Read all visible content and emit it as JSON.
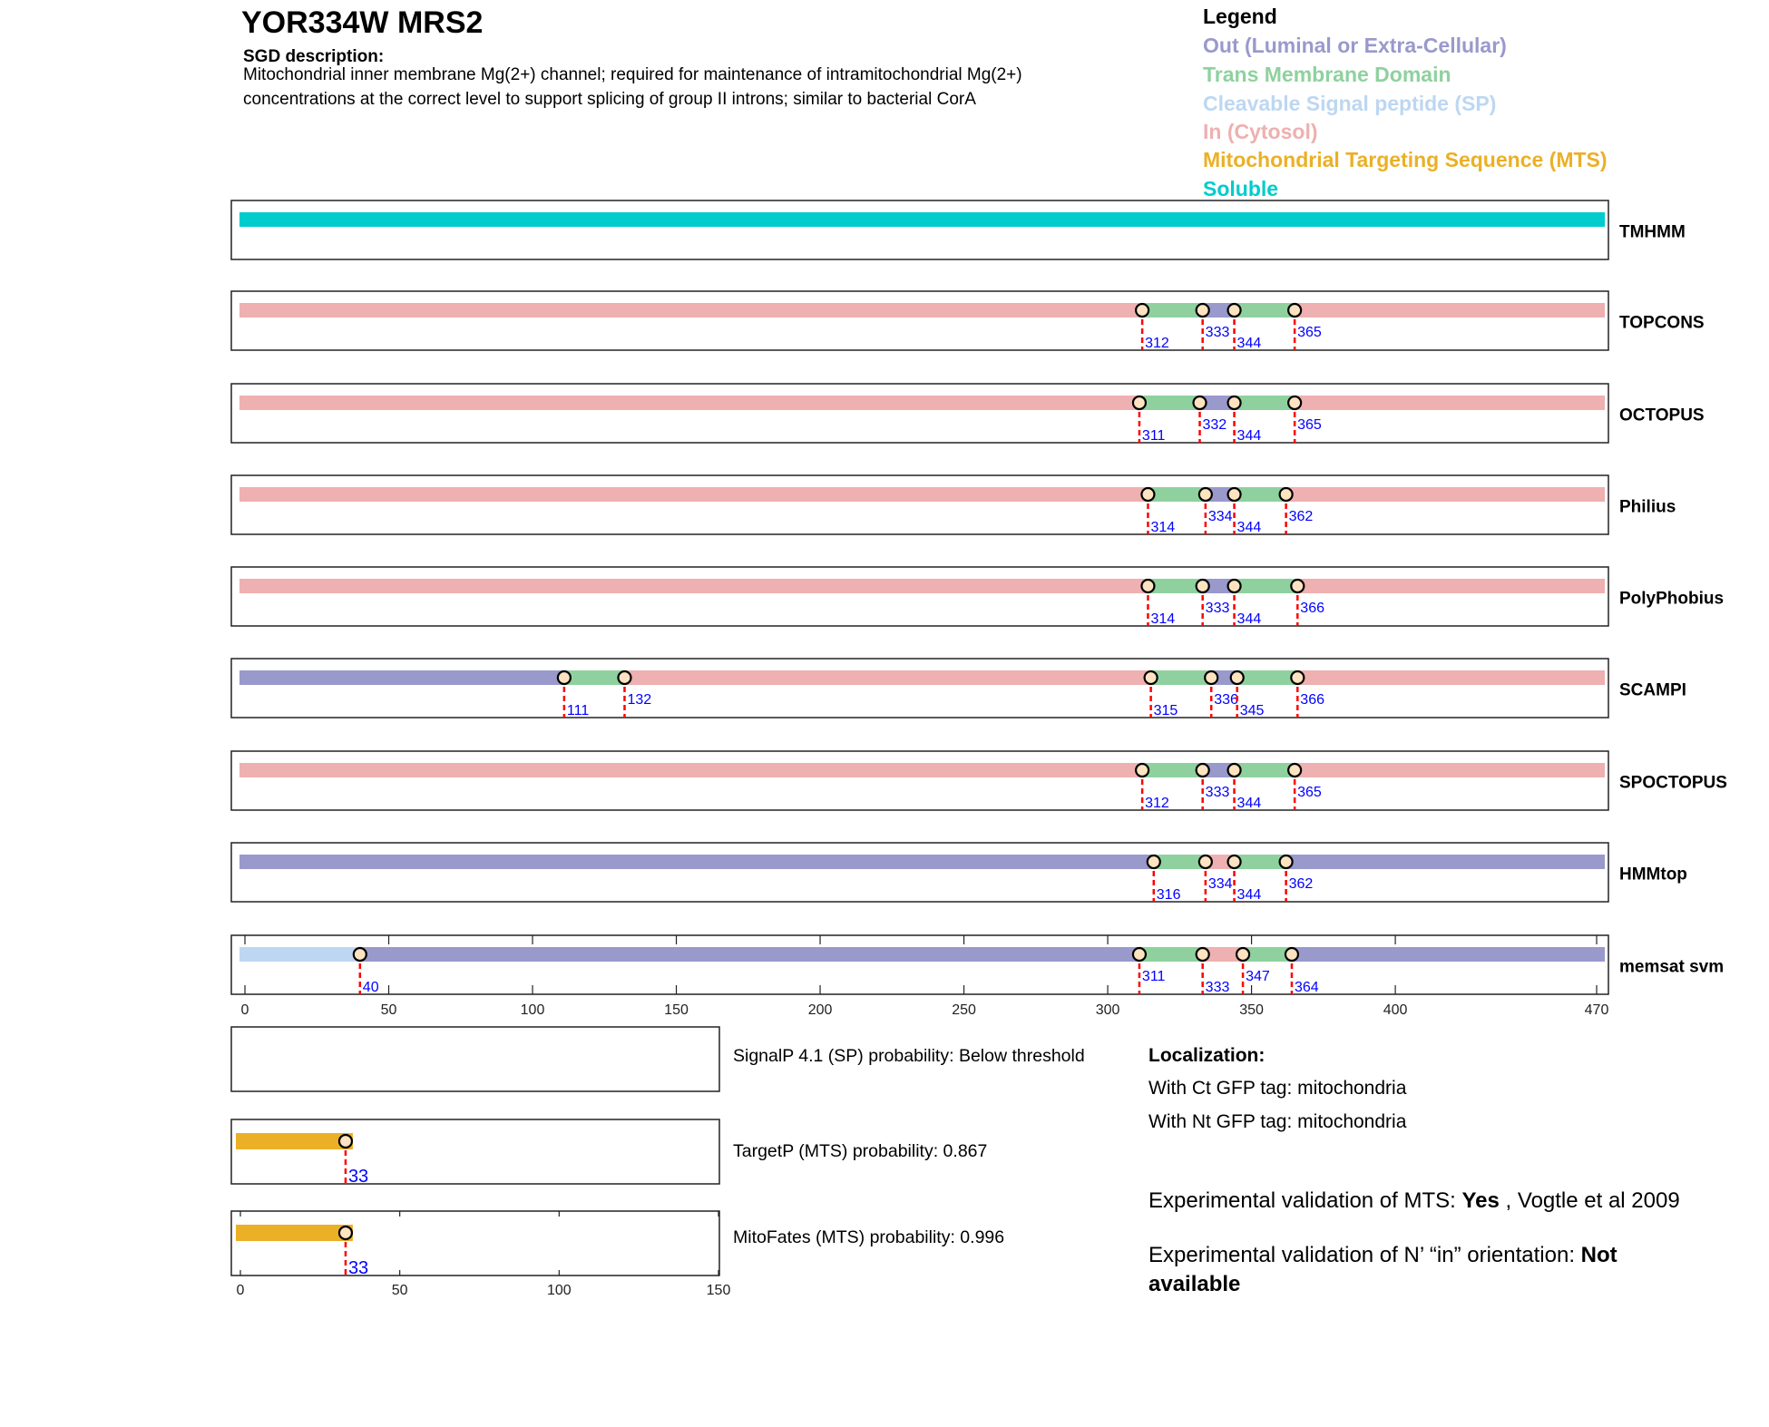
{
  "header": {
    "title": "YOR334W  MRS2",
    "description_label": "SGD description:",
    "description_lines": [
      "Mitochondrial inner membrane Mg(2+) channel; required for maintenance of intramitochondrial Mg(2+)",
      "concentrations at the correct level to support splicing of group II introns; similar to bacterial CorA"
    ]
  },
  "legend": {
    "title": "Legend",
    "items": [
      {
        "key": "out",
        "label": "Out (Luminal or Extra-Cellular)",
        "color": "#9999cc"
      },
      {
        "key": "tm",
        "label": "Trans Membrane Domain",
        "color": "#8fd19e"
      },
      {
        "key": "sp",
        "label": "Cleavable Signal peptide (SP)",
        "color": "#bdd7f2"
      },
      {
        "key": "in",
        "label": "In (Cytosol)",
        "color": "#eeb0b0"
      },
      {
        "key": "mts",
        "label": "Mitochondrial Targeting Sequence (MTS)",
        "color": "#ebb026"
      },
      {
        "key": "soluble",
        "label": "Soluble",
        "color": "#00cccc"
      }
    ]
  },
  "chart_data": [
    {
      "type": "track",
      "x_range": [
        0,
        470
      ],
      "ticks": [
        0,
        50,
        100,
        150,
        200,
        250,
        300,
        350,
        400,
        470
      ],
      "length": 470,
      "tracks": [
        {
          "name": "TMHMM",
          "markers": [],
          "types": [
            "soluble"
          ]
        },
        {
          "name": "TOPCONS",
          "markers": [
            312,
            333,
            344,
            365
          ],
          "types": [
            "in",
            "tm",
            "out",
            "tm",
            "in"
          ]
        },
        {
          "name": "OCTOPUS",
          "markers": [
            311,
            332,
            344,
            365
          ],
          "types": [
            "in",
            "tm",
            "out",
            "tm",
            "in"
          ]
        },
        {
          "name": "Philius",
          "markers": [
            314,
            334,
            344,
            362
          ],
          "types": [
            "in",
            "tm",
            "out",
            "tm",
            "in"
          ]
        },
        {
          "name": "PolyPhobius",
          "markers": [
            314,
            333,
            344,
            366
          ],
          "types": [
            "in",
            "tm",
            "out",
            "tm",
            "in"
          ]
        },
        {
          "name": "SCAMPI",
          "markers": [
            111,
            132,
            315,
            336,
            345,
            366
          ],
          "types": [
            "out",
            "tm",
            "in",
            "tm",
            "out",
            "tm",
            "in"
          ]
        },
        {
          "name": "SPOCTOPUS",
          "markers": [
            312,
            333,
            344,
            365
          ],
          "types": [
            "in",
            "tm",
            "out",
            "tm",
            "in"
          ]
        },
        {
          "name": "HMMtop",
          "markers": [
            316,
            334,
            344,
            362
          ],
          "types": [
            "out",
            "tm",
            "in",
            "tm",
            "out"
          ]
        },
        {
          "name": "memsat svm",
          "markers": [
            40,
            311,
            333,
            347,
            364
          ],
          "types": [
            "sp",
            "out",
            "tm",
            "in",
            "tm",
            "out"
          ]
        }
      ]
    },
    {
      "type": "track",
      "x_range": [
        0,
        150
      ],
      "ticks": [
        0,
        50,
        100,
        150
      ],
      "panels": [
        {
          "label": "SignalP 4.1 (SP) probability: Below threshold",
          "mts_end": null
        },
        {
          "label": "TargetP (MTS) probability: 0.867",
          "mts_end": 33
        },
        {
          "label": "MitoFates (MTS) probability: 0.996",
          "mts_end": 33
        }
      ]
    }
  ],
  "localization": {
    "title": "Localization:",
    "ct": "With Ct GFP tag: mitochondria",
    "nt": "With Nt GFP tag: mitochondria"
  },
  "validation": {
    "mts_prefix": "Experimental validation of MTS: ",
    "mts_value": "Yes",
    "mts_suffix": " , Vogtle et al 2009",
    "orient_prefix": "Experimental validation of N’ “in” orientation: ",
    "orient_value": "Not",
    "orient_value2": "available"
  }
}
